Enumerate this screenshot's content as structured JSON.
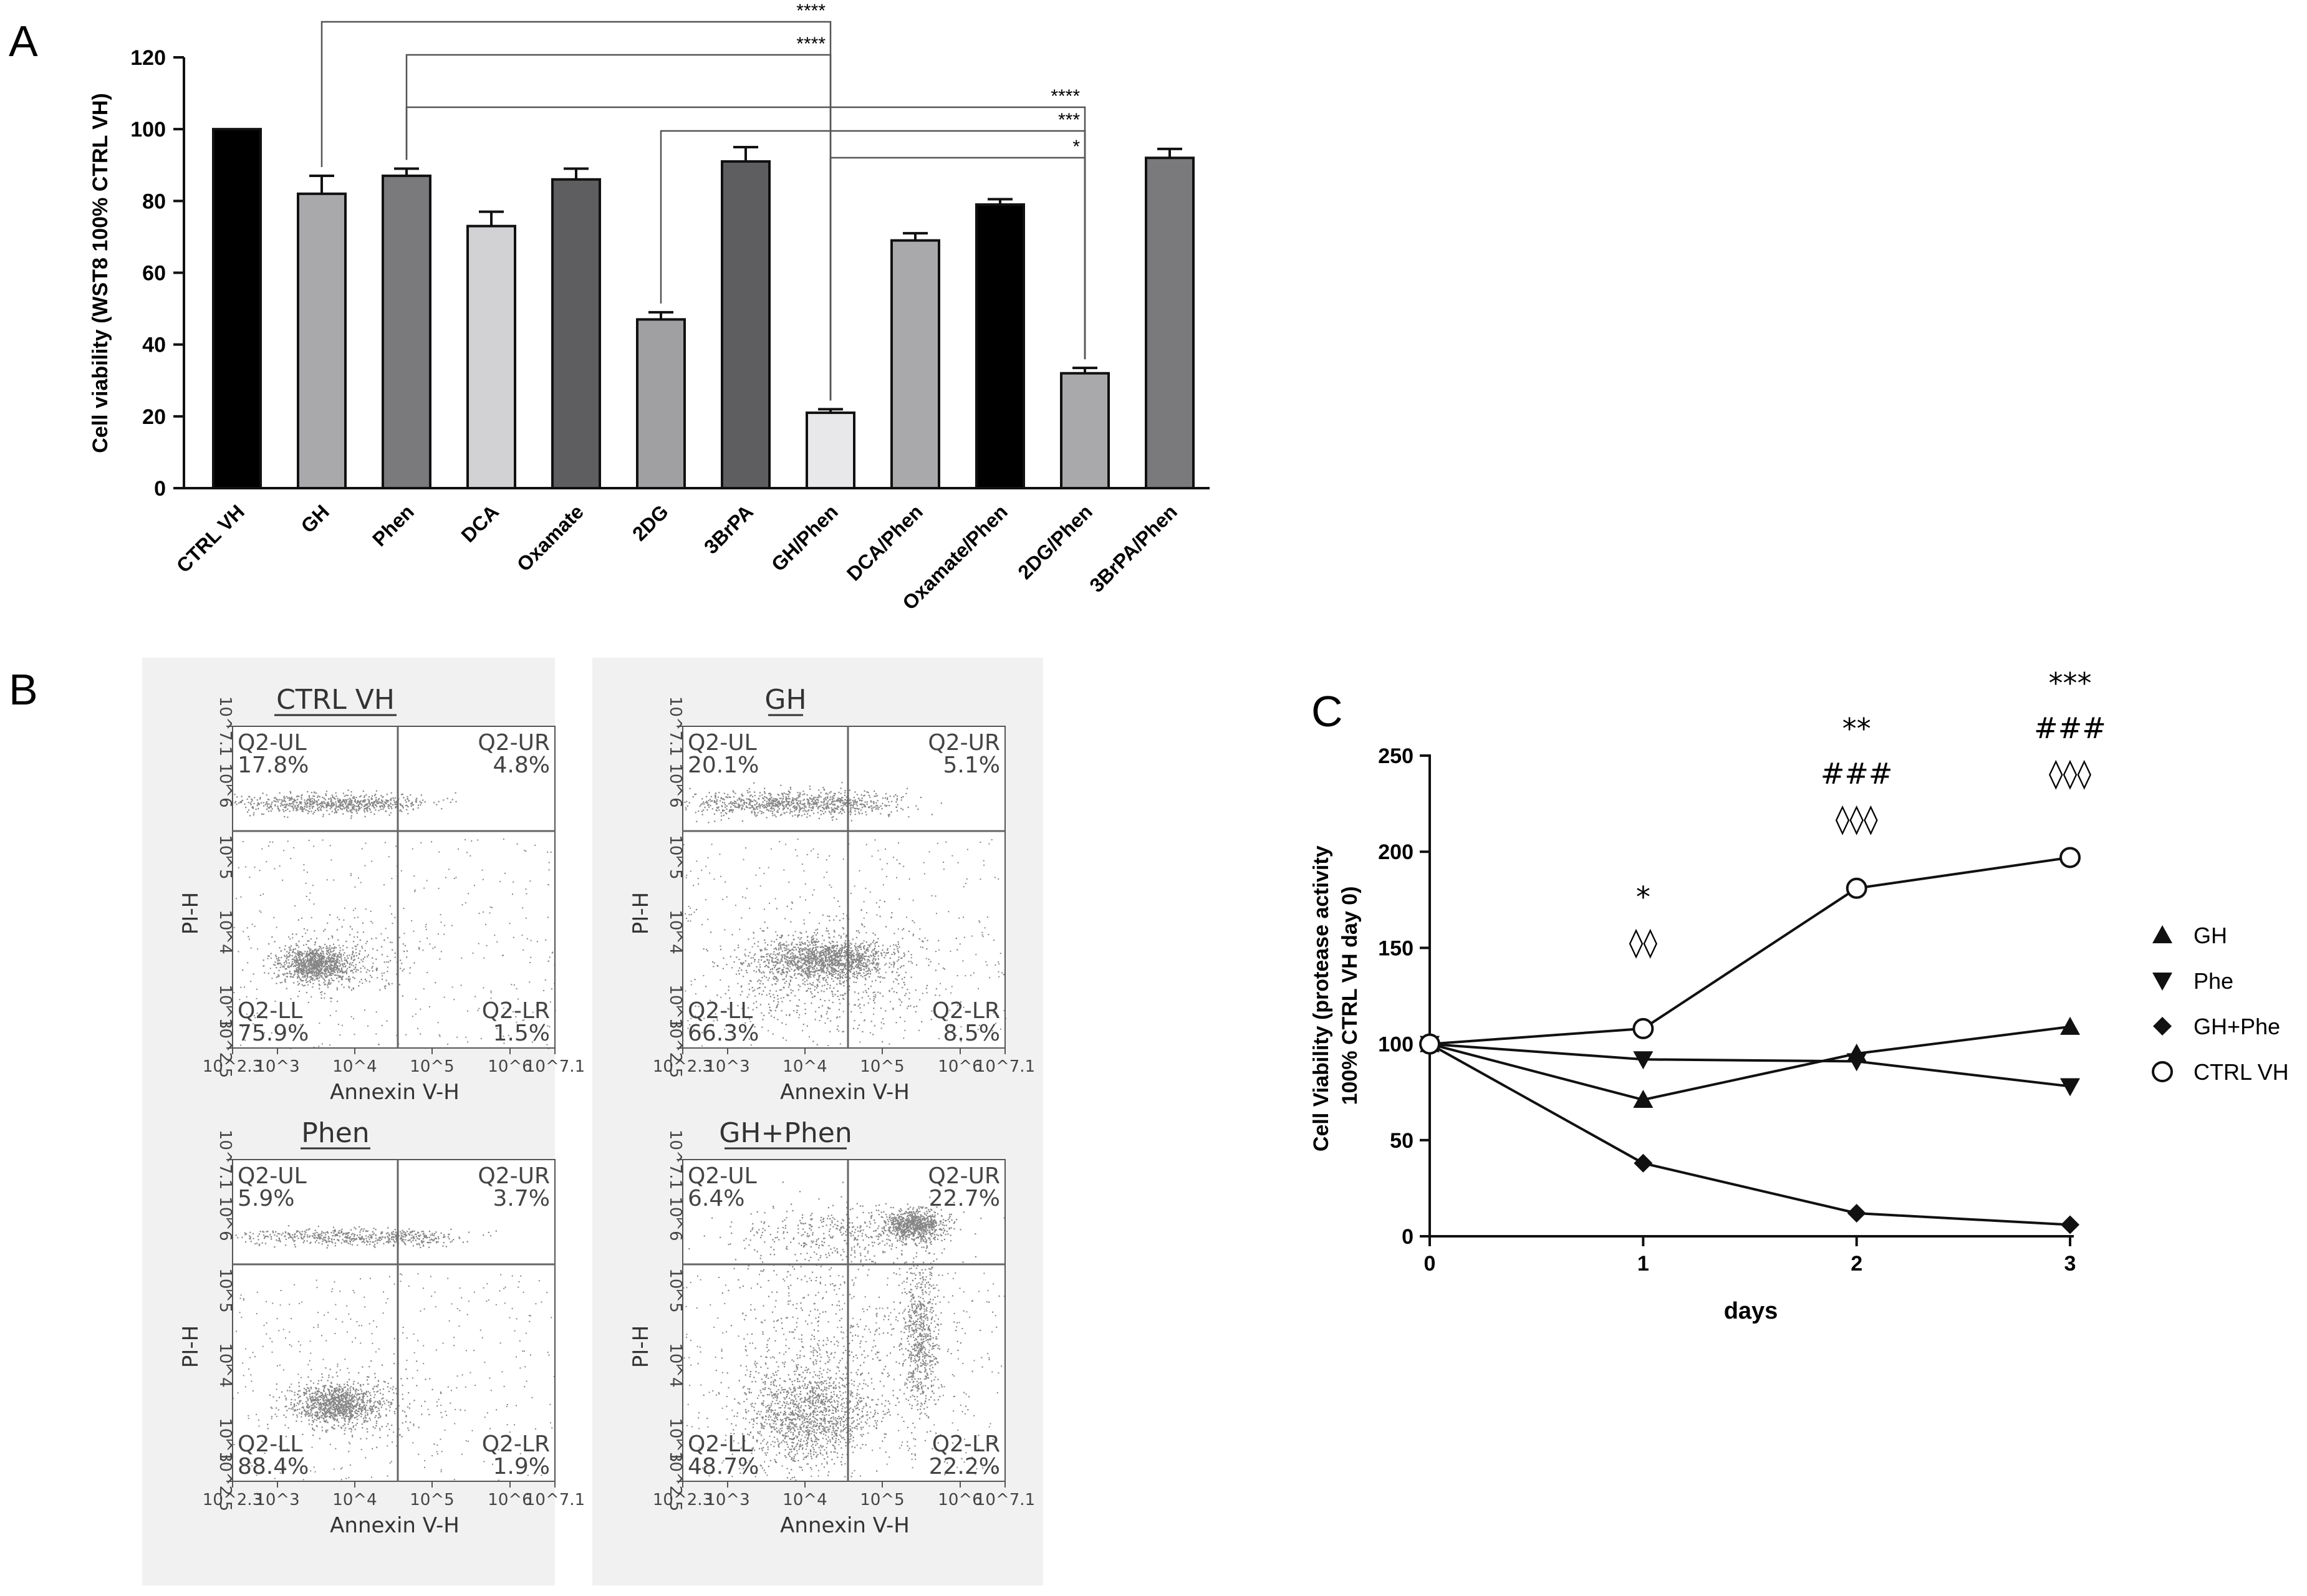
{
  "panel_labels": {
    "a": "A",
    "b": "B",
    "c": "C"
  },
  "chart_data": [
    {
      "type": "bar",
      "panel": "A",
      "title": "",
      "xlabel": "",
      "ylabel": "Cell viability (WST8 100% CTRL VH)",
      "ylim": [
        0,
        120
      ],
      "yticks": [
        0,
        20,
        40,
        60,
        80,
        100,
        120
      ],
      "categories": [
        "CTRL VH",
        "GH",
        "Phen",
        "DCA",
        "Oxamate",
        "2DG",
        "3BrPA",
        "GH/Phen",
        "DCA/Phen",
        "Oxamate/Phen",
        "2DG/Phen",
        "3BrPA/Phen"
      ],
      "values": [
        100,
        82,
        87,
        73,
        86,
        47,
        91,
        21,
        69,
        79,
        32,
        92
      ],
      "errors": [
        0,
        5,
        2,
        4,
        3,
        2,
        4,
        1,
        2,
        1.5,
        1.5,
        2.5
      ],
      "bar_colors": [
        "#000000",
        "#a9a9ab",
        "#7a7a7c",
        "#d2d2d4",
        "#5e5e60",
        "#a0a0a2",
        "#5e5e60",
        "#e8e8ea",
        "#a9a9ab",
        "#000000",
        "#a9a9ab",
        "#7a7a7c"
      ],
      "significance": [
        {
          "from": "GH",
          "to": "GH/Phen",
          "label": "****"
        },
        {
          "from": "Phen",
          "to": "GH/Phen",
          "label": "****"
        },
        {
          "from": "Phen",
          "to": "2DG/Phen",
          "label": "****"
        },
        {
          "from": "2DG",
          "to": "2DG/Phen",
          "label": "***"
        },
        {
          "from": "GH/Phen",
          "to": "2DG/Phen",
          "label": "*"
        }
      ]
    },
    {
      "type": "scatter",
      "panel": "B",
      "subtype": "flow-cytometry quadrant plots",
      "xlabel": "Annexin V-H",
      "ylabel": "PI-H",
      "xticks": [
        "10^2.3",
        "10^3",
        "10^4",
        "10^5",
        "10^6",
        "10^7.1"
      ],
      "yticks": [
        "10^2.5",
        "10^3",
        "10^4",
        "10^5",
        "10^6",
        "10^7.1"
      ],
      "quadrant_names": [
        "Q2-UL",
        "Q2-UR",
        "Q2-LL",
        "Q2-LR"
      ],
      "plots": [
        {
          "title": "CTRL VH",
          "UL": "17.8%",
          "UR": "4.8%",
          "LL": "75.9%",
          "LR": "1.5%"
        },
        {
          "title": "GH",
          "UL": "20.1%",
          "UR": "5.1%",
          "LL": "66.3%",
          "LR": "8.5%"
        },
        {
          "title": "Phen",
          "UL": "5.9%",
          "UR": "3.7%",
          "LL": "88.4%",
          "LR": "1.9%"
        },
        {
          "title": "GH+Phen",
          "UL": "6.4%",
          "UR": "22.7%",
          "LL": "48.7%",
          "LR": "22.2%"
        }
      ]
    },
    {
      "type": "line",
      "panel": "C",
      "title": "",
      "xlabel": "days",
      "ylabel": "Cell Viability (protease activity 100% CTRL VH day 0)",
      "ylabel_lines": [
        "Cell Viability (protease activity",
        "100% CTRL VH day 0)"
      ],
      "x": [
        0,
        1,
        2,
        3
      ],
      "xlim": [
        0,
        3
      ],
      "ylim": [
        0,
        250
      ],
      "yticks": [
        0,
        50,
        100,
        150,
        200,
        250
      ],
      "series": [
        {
          "name": "GH",
          "marker": "triangle-up",
          "values": [
            100,
            71,
            95,
            109
          ]
        },
        {
          "name": "Phe",
          "marker": "triangle-down",
          "values": [
            100,
            92,
            91,
            78
          ]
        },
        {
          "name": "GH+Phe",
          "marker": "diamond",
          "values": [
            100,
            38,
            12,
            6
          ]
        },
        {
          "name": "CTRL VH",
          "marker": "open-circle",
          "values": [
            100,
            108,
            181,
            197
          ]
        }
      ],
      "annotations": [
        {
          "x": 1,
          "lines": [
            "*",
            "◊◊"
          ]
        },
        {
          "x": 2,
          "lines": [
            "**",
            "###",
            "◊◊◊"
          ]
        },
        {
          "x": 3,
          "lines": [
            "***",
            "###",
            "◊◊◊"
          ]
        }
      ],
      "legend_position": "right"
    }
  ]
}
